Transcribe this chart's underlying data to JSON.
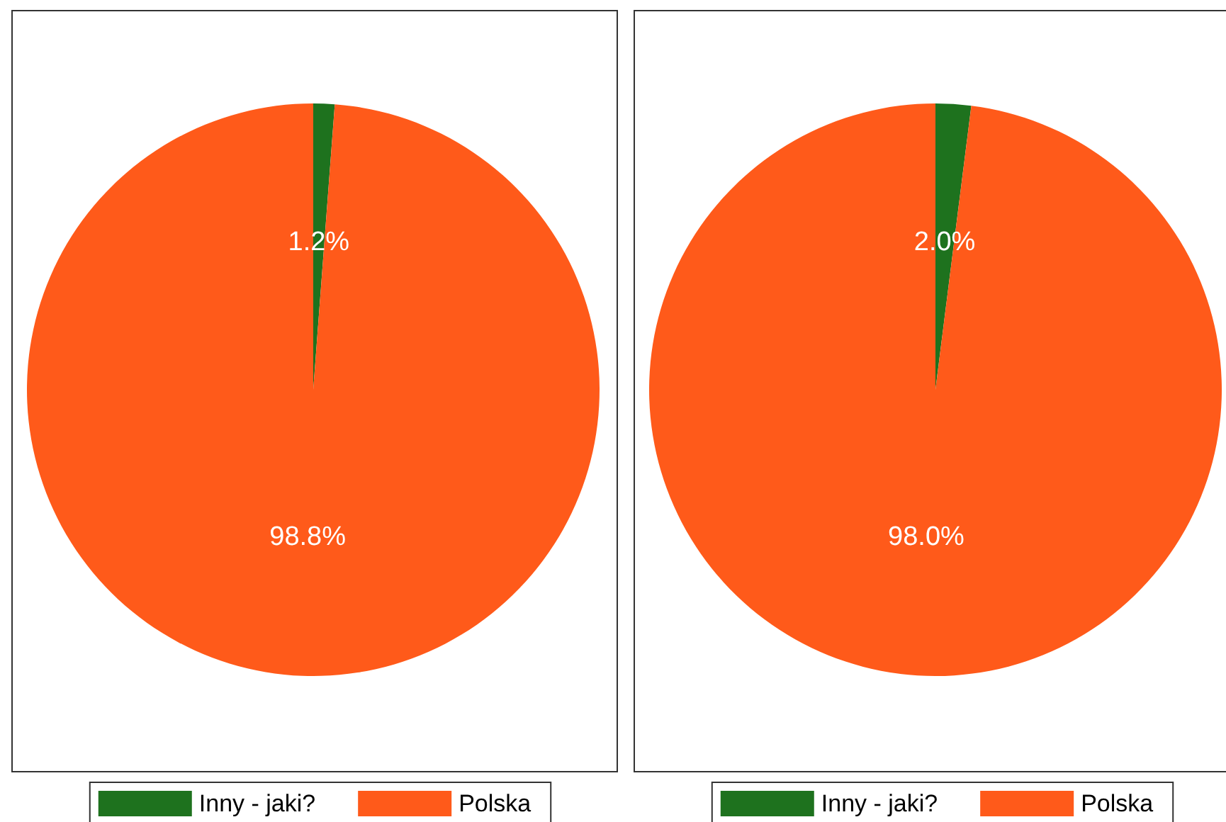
{
  "chart_data": [
    {
      "type": "pie",
      "categories": [
        "Inny - jaki?",
        "Polska"
      ],
      "values": [
        1.2,
        98.8
      ],
      "value_labels": [
        "1.2%",
        "98.8%"
      ],
      "colors": [
        "#1e721e",
        "#ff5a1a"
      ],
      "legend": "bottom"
    },
    {
      "type": "pie",
      "categories": [
        "Inny - jaki?",
        "Polska"
      ],
      "values": [
        2.0,
        98.0
      ],
      "value_labels": [
        "2.0%",
        "98.0%"
      ],
      "colors": [
        "#1e721e",
        "#ff5a1a"
      ],
      "legend": "bottom"
    }
  ]
}
